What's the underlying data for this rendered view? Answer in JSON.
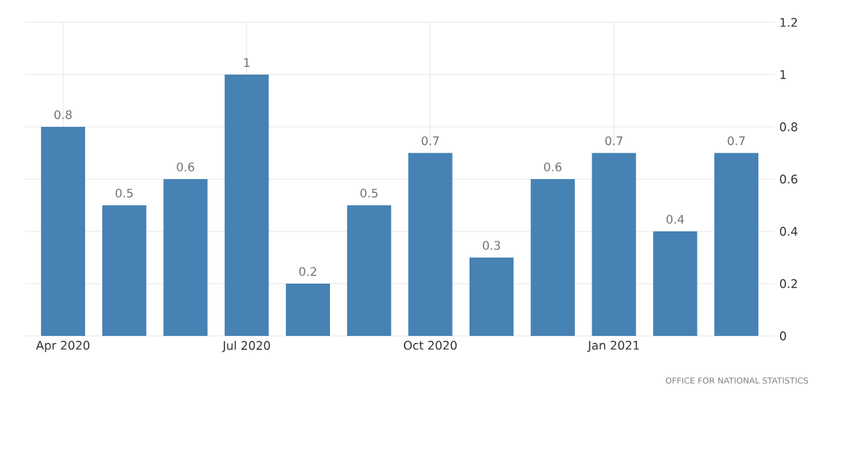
{
  "chart_data": {
    "type": "bar",
    "categories": [
      "Apr 2020",
      null,
      null,
      "Jul 2020",
      null,
      null,
      "Oct 2020",
      null,
      null,
      "Jan 2021",
      null,
      null
    ],
    "values": [
      0.8,
      0.5,
      0.6,
      1,
      0.2,
      0.5,
      0.7,
      0.3,
      0.6,
      0.7,
      0.4,
      0.7
    ],
    "color": "#4682b4",
    "ylim": [
      0,
      1.2
    ],
    "yticks": [
      0,
      0.2,
      0.4,
      0.6,
      0.8,
      1,
      1.2
    ],
    "grid": true,
    "data_labels": true,
    "annotations": [
      "OFFICE FOR NATIONAL STATISTICS"
    ]
  }
}
